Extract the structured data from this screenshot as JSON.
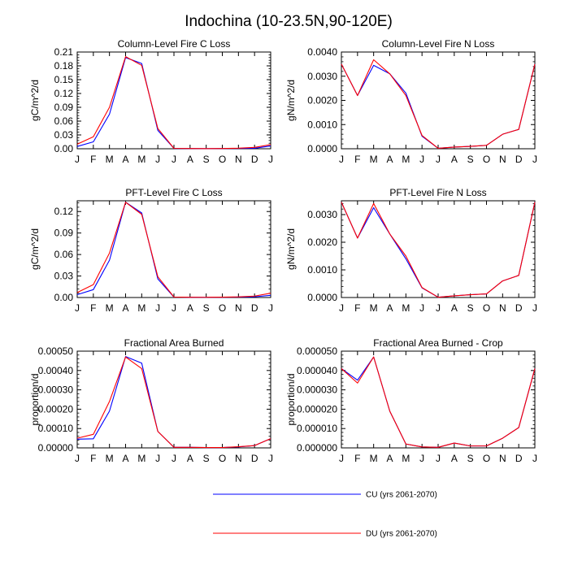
{
  "figure": {
    "title": "Indochina (10-23.5N,90-120E)",
    "months": [
      "J",
      "F",
      "M",
      "A",
      "M",
      "J",
      "J",
      "A",
      "S",
      "O",
      "N",
      "D",
      "J"
    ]
  },
  "legend": [
    {
      "label": "CU (yrs 2061-2070)",
      "color": "#0000ff"
    },
    {
      "label": "DU (yrs 2061-2070)",
      "color": "#ff0000"
    }
  ],
  "chart_data": [
    {
      "type": "line",
      "title": "Column-Level Fire C Loss",
      "ylabel": "gC/m^2/d",
      "ylim": [
        0,
        0.21
      ],
      "yticks": [
        0.0,
        0.03,
        0.06,
        0.09,
        0.12,
        0.15,
        0.18,
        0.21
      ],
      "ytick_labels": [
        "0.00",
        "0.03",
        "0.06",
        "0.09",
        "0.12",
        "0.15",
        "0.18",
        "0.21"
      ],
      "series": [
        {
          "name": "CU (yrs 2061-2070)",
          "color": "#0000ff",
          "values": [
            0.005,
            0.015,
            0.075,
            0.198,
            0.185,
            0.04,
            0.0008,
            0.0005,
            0.0004,
            0.0005,
            0.0008,
            0.001,
            0.006
          ]
        },
        {
          "name": "DU (yrs 2061-2070)",
          "color": "#ff0000",
          "values": [
            0.01,
            0.026,
            0.09,
            0.2,
            0.181,
            0.044,
            0.0009,
            0.0005,
            0.0004,
            0.0006,
            0.0012,
            0.003,
            0.009
          ]
        }
      ]
    },
    {
      "type": "line",
      "title": "Column-Level Fire N Loss",
      "ylabel": "gN/m^2/d",
      "ylim": [
        0,
        0.004
      ],
      "yticks": [
        0,
        0.001,
        0.002,
        0.003,
        0.004
      ],
      "ytick_labels": [
        "0.0000",
        "0.0010",
        "0.0020",
        "0.0030",
        "0.0040"
      ],
      "series": [
        {
          "name": "CU (yrs 2061-2070)",
          "color": "#0000ff",
          "values": [
            0.0035,
            0.0022,
            0.00345,
            0.0031,
            0.0023,
            0.00052,
            2e-05,
            7e-05,
            0.0001,
            0.00014,
            0.0006,
            0.0008,
            0.0035
          ]
        },
        {
          "name": "DU (yrs 2061-2070)",
          "color": "#ff0000",
          "values": [
            0.0035,
            0.0022,
            0.00368,
            0.0031,
            0.0022,
            0.00055,
            2e-05,
            7e-05,
            0.0001,
            0.00014,
            0.0006,
            0.0008,
            0.0035
          ]
        }
      ]
    },
    {
      "type": "line",
      "title": "PFT-Level Fire C Loss",
      "ylabel": "gC/m^2/d",
      "ylim": [
        0,
        0.135
      ],
      "yticks": [
        0.0,
        0.03,
        0.06,
        0.09,
        0.12
      ],
      "ytick_labels": [
        "0.00",
        "0.03",
        "0.06",
        "0.09",
        "0.12"
      ],
      "series": [
        {
          "name": "CU (yrs 2061-2070)",
          "color": "#0000ff",
          "values": [
            0.004,
            0.011,
            0.052,
            0.133,
            0.118,
            0.026,
            0.0006,
            0.0004,
            0.0003,
            0.0004,
            0.0006,
            0.001,
            0.003
          ]
        },
        {
          "name": "DU (yrs 2061-2070)",
          "color": "#ff0000",
          "values": [
            0.007,
            0.018,
            0.062,
            0.133,
            0.116,
            0.029,
            0.0007,
            0.0004,
            0.0003,
            0.0005,
            0.0009,
            0.002,
            0.006
          ]
        }
      ]
    },
    {
      "type": "line",
      "title": "PFT-Level Fire N Loss",
      "ylabel": "gN/m^2/d",
      "ylim": [
        0,
        0.0035
      ],
      "yticks": [
        0,
        0.001,
        0.002,
        0.003
      ],
      "ytick_labels": [
        "0.0000",
        "0.0010",
        "0.0020",
        "0.0030"
      ],
      "series": [
        {
          "name": "CU (yrs 2061-2070)",
          "color": "#0000ff",
          "values": [
            0.00345,
            0.00215,
            0.00325,
            0.0023,
            0.0014,
            0.00035,
            1e-05,
            6e-05,
            0.0001,
            0.00013,
            0.0006,
            0.0008,
            0.00345
          ]
        },
        {
          "name": "DU (yrs 2061-2070)",
          "color": "#ff0000",
          "values": [
            0.00345,
            0.00215,
            0.0034,
            0.0023,
            0.0015,
            0.00036,
            1e-05,
            6e-05,
            0.0001,
            0.00013,
            0.0006,
            0.0008,
            0.00345
          ]
        }
      ]
    },
    {
      "type": "line",
      "title": "Fractional Area Burned",
      "ylabel": "proportion/d",
      "ylim": [
        0,
        0.0005
      ],
      "yticks": [
        0,
        0.0001,
        0.0002,
        0.0003,
        0.0004,
        0.0005
      ],
      "ytick_labels": [
        "0.00000",
        "0.00010",
        "0.00020",
        "0.00030",
        "0.00040",
        "0.00050"
      ],
      "series": [
        {
          "name": "CU (yrs 2061-2070)",
          "color": "#0000ff",
          "values": [
            4.5e-05,
            4.7e-05,
            0.00019,
            0.000472,
            0.000438,
            8.5e-05,
            3e-06,
            3e-06,
            2e-06,
            2e-06,
            5e-06,
            1.2e-05,
            4.8e-05
          ]
        },
        {
          "name": "DU (yrs 2061-2070)",
          "color": "#ff0000",
          "values": [
            5e-05,
            7e-05,
            0.00024,
            0.00047,
            0.00041,
            8.5e-05,
            3e-06,
            3e-06,
            2e-06,
            2e-06,
            6e-06,
            1.2e-05,
            4.8e-05
          ]
        }
      ]
    },
    {
      "type": "line",
      "title": "Fractional Area Burned - Crop",
      "ylabel": "proportion/d",
      "ylim": [
        0,
        5e-05
      ],
      "yticks": [
        0,
        1e-05,
        2e-05,
        3e-05,
        4e-05,
        5e-05
      ],
      "ytick_labels": [
        "0.000000",
        "0.000010",
        "0.000020",
        "0.000030",
        "0.000040",
        "0.000050"
      ],
      "series": [
        {
          "name": "CU (yrs 2061-2070)",
          "color": "#0000ff",
          "values": [
            4.1e-05,
            3.5e-05,
            4.7e-05,
            1.9e-05,
            2e-06,
            5e-07,
            3e-07,
            2.5e-06,
            1e-06,
            1e-06,
            5e-06,
            1.05e-05,
            4.1e-05
          ]
        },
        {
          "name": "DU (yrs 2061-2070)",
          "color": "#ff0000",
          "values": [
            4.1e-05,
            3.35e-05,
            4.7e-05,
            1.9e-05,
            2e-06,
            5e-07,
            3e-07,
            2.5e-06,
            1e-06,
            1e-06,
            5e-06,
            1.05e-05,
            4.1e-05
          ]
        }
      ]
    }
  ]
}
